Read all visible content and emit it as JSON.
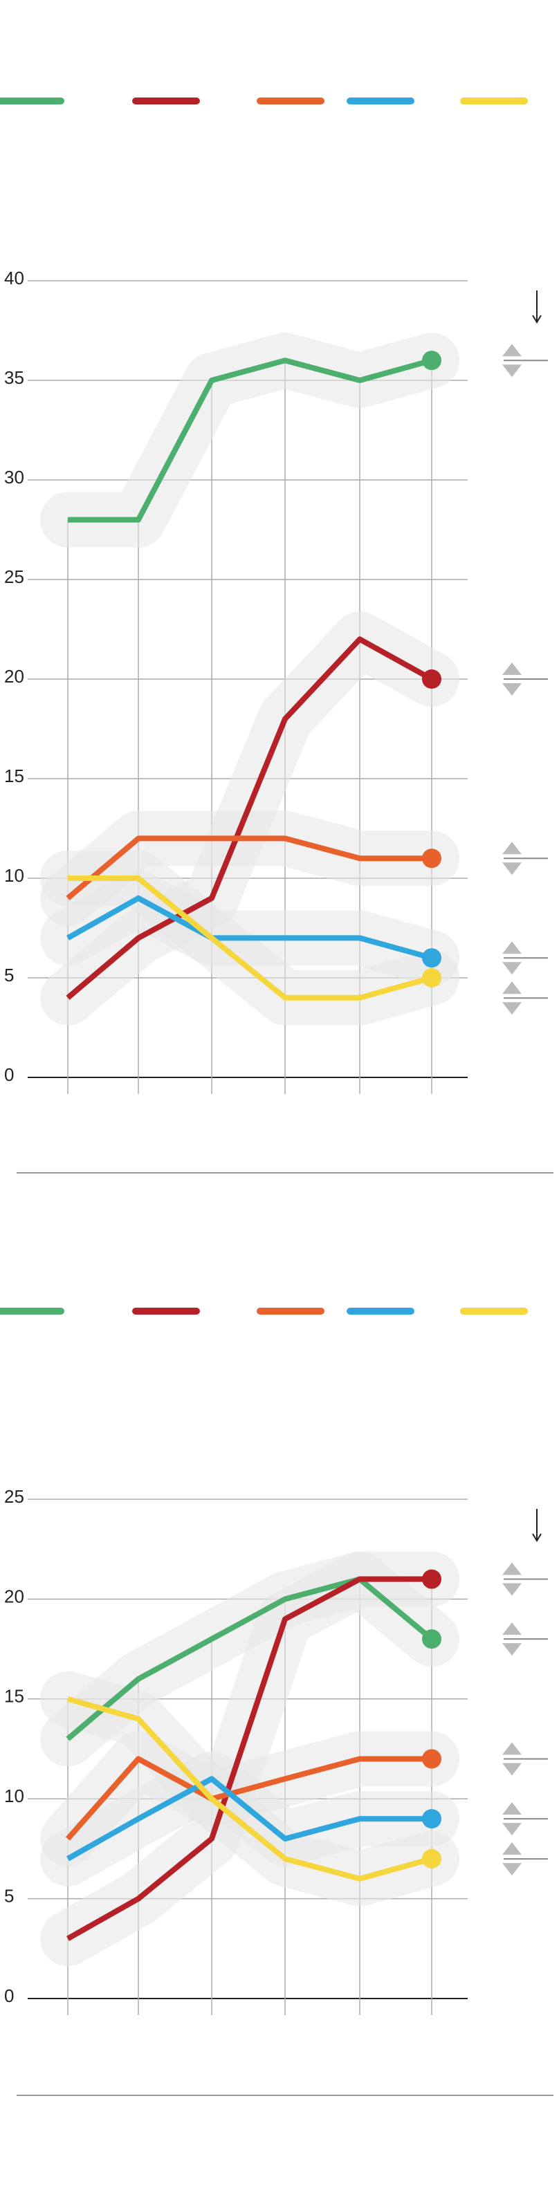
{
  "chart_data": [
    {
      "type": "line",
      "categories": [
        null,
        null,
        null,
        null,
        null,
        null
      ],
      "series": [
        {
          "color": "#4caf6e",
          "values": [
            28,
            28,
            35,
            36,
            35,
            36
          ]
        },
        {
          "color": "#b52126",
          "values": [
            4,
            7,
            9,
            18,
            22,
            20
          ]
        },
        {
          "color": "#e8602c",
          "values": [
            9,
            12,
            12,
            12,
            11,
            11
          ]
        },
        {
          "color": "#2fa6de",
          "values": [
            7,
            9,
            7,
            7,
            7,
            6
          ]
        },
        {
          "color": "#f5d63d",
          "values": [
            10,
            10,
            7,
            4,
            4,
            5
          ]
        }
      ],
      "ylim": [
        0,
        40
      ],
      "yticks": [
        0,
        5,
        10,
        15,
        20,
        25,
        30,
        35,
        40
      ],
      "grid": true
    },
    {
      "type": "line",
      "categories": [
        null,
        null,
        null,
        null,
        null,
        null
      ],
      "series": [
        {
          "color": "#4caf6e",
          "values": [
            13,
            16,
            18,
            20,
            21,
            18
          ]
        },
        {
          "color": "#b52126",
          "values": [
            3,
            5,
            8,
            19,
            21,
            21
          ]
        },
        {
          "color": "#e8602c",
          "values": [
            8,
            12,
            10,
            11,
            12,
            12
          ]
        },
        {
          "color": "#2fa6de",
          "values": [
            7,
            9,
            11,
            8,
            9,
            9
          ]
        },
        {
          "color": "#f5d63d",
          "values": [
            15,
            14,
            10,
            7,
            6,
            7
          ]
        }
      ],
      "ylim": [
        0,
        25
      ],
      "yticks": [
        0,
        5,
        10,
        15,
        20,
        25
      ],
      "grid": true
    }
  ]
}
